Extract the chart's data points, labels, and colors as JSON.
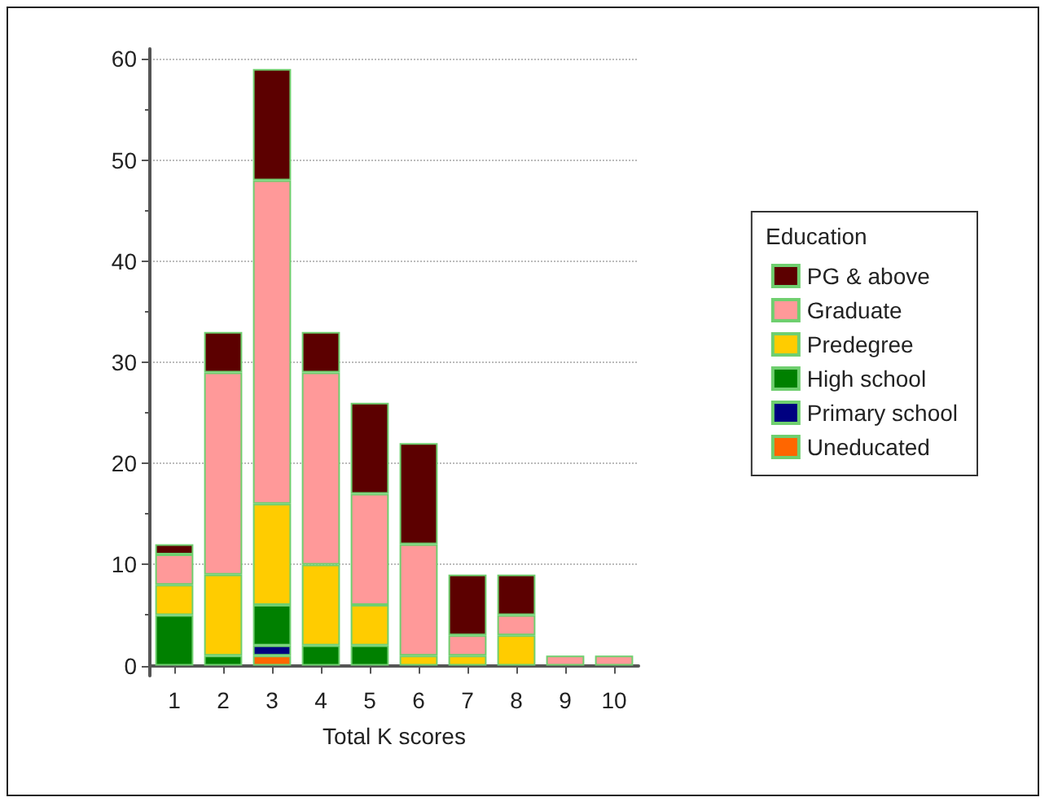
{
  "chart_data": {
    "type": "bar",
    "stacked": true,
    "xlabel": "Total K scores",
    "legend_title": "Education",
    "categories": [
      "1",
      "2",
      "3",
      "4",
      "5",
      "6",
      "7",
      "8",
      "9",
      "10"
    ],
    "series": [
      {
        "name": "Uneducated",
        "color": "#ff6600",
        "values": [
          0,
          0,
          1,
          0,
          0,
          0,
          0,
          0,
          0,
          0
        ]
      },
      {
        "name": "Primary school",
        "color": "#000080",
        "values": [
          0,
          0,
          1,
          0,
          0,
          0,
          0,
          0,
          0,
          0
        ]
      },
      {
        "name": "High school",
        "color": "#008000",
        "values": [
          5,
          1,
          4,
          2,
          2,
          0,
          0,
          0,
          0,
          0
        ]
      },
      {
        "name": "Predegree",
        "color": "#ffcc00",
        "values": [
          3,
          8,
          10,
          8,
          4,
          1,
          1,
          3,
          0,
          0
        ]
      },
      {
        "name": "Graduate",
        "color": "#ff9999",
        "values": [
          3,
          20,
          32,
          19,
          11,
          11,
          2,
          2,
          1,
          1
        ]
      },
      {
        "name": "PG & above",
        "color": "#5c0000",
        "values": [
          1,
          4,
          11,
          4,
          9,
          10,
          6,
          4,
          0,
          0
        ]
      }
    ],
    "ylim": [
      -1,
      61
    ],
    "yticks": [
      0,
      10,
      20,
      30,
      40,
      50,
      60
    ],
    "grid": "y",
    "legend": "right"
  }
}
